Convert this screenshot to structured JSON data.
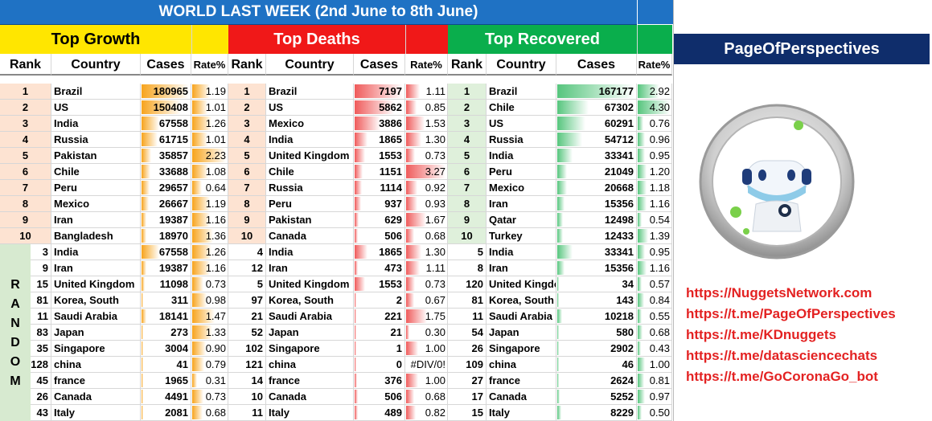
{
  "title": "WORLD LAST WEEK (2nd June to 8th June)",
  "colors": {
    "title_bg": "#1f72c4",
    "growth": "#ffe600",
    "deaths": "#f01818",
    "recovered": "#0aae4c",
    "brand": "#0f2d6b",
    "links": "#e32222"
  },
  "sections": [
    {
      "label": "Top Growth",
      "key": "growth"
    },
    {
      "label": "Top Deaths",
      "key": "deaths"
    },
    {
      "label": "Top Recovered",
      "key": "recovered"
    }
  ],
  "col_headers": {
    "rank": "Rank",
    "country": "Country",
    "cases": "Cases",
    "rate": "Rate%"
  },
  "random_label": [
    "R",
    "A",
    "N",
    "D",
    "O",
    "M"
  ],
  "growth": [
    [
      "1",
      "Brazil",
      "180965",
      "1.19"
    ],
    [
      "2",
      "US",
      "150408",
      "1.01"
    ],
    [
      "3",
      "India",
      "67558",
      "1.26"
    ],
    [
      "4",
      "Russia",
      "61715",
      "1.01"
    ],
    [
      "5",
      "Pakistan",
      "35857",
      "2.23"
    ],
    [
      "6",
      "Chile",
      "33688",
      "1.08"
    ],
    [
      "7",
      "Peru",
      "29657",
      "0.64"
    ],
    [
      "8",
      "Mexico",
      "26667",
      "1.19"
    ],
    [
      "9",
      "Iran",
      "19387",
      "1.16"
    ],
    [
      "10",
      "Bangladesh",
      "18970",
      "1.36"
    ],
    [
      "3",
      "India",
      "67558",
      "1.26"
    ],
    [
      "9",
      "Iran",
      "19387",
      "1.16"
    ],
    [
      "15",
      "United Kingdom",
      "11098",
      "0.73"
    ],
    [
      "81",
      "Korea, South",
      "311",
      "0.98"
    ],
    [
      "11",
      "Saudi Arabia",
      "18141",
      "1.47"
    ],
    [
      "83",
      "Japan",
      "273",
      "1.33"
    ],
    [
      "35",
      "Singapore",
      "3004",
      "0.90"
    ],
    [
      "128",
      "china",
      "41",
      "0.79"
    ],
    [
      "45",
      "france",
      "1965",
      "0.31"
    ],
    [
      "26",
      "Canada",
      "4491",
      "0.73"
    ],
    [
      "43",
      "Italy",
      "2081",
      "0.68"
    ]
  ],
  "deaths": [
    [
      "1",
      "Brazil",
      "7197",
      "1.11"
    ],
    [
      "2",
      "US",
      "5862",
      "0.85"
    ],
    [
      "3",
      "Mexico",
      "3886",
      "1.53"
    ],
    [
      "4",
      "India",
      "1865",
      "1.30"
    ],
    [
      "5",
      "United Kingdom",
      "1553",
      "0.73"
    ],
    [
      "6",
      "Chile",
      "1151",
      "3.27"
    ],
    [
      "7",
      "Russia",
      "1114",
      "0.92"
    ],
    [
      "8",
      "Peru",
      "937",
      "0.93"
    ],
    [
      "9",
      "Pakistan",
      "629",
      "1.67"
    ],
    [
      "10",
      "Canada",
      "506",
      "0.68"
    ],
    [
      "4",
      "India",
      "1865",
      "1.30"
    ],
    [
      "12",
      "Iran",
      "473",
      "1.11"
    ],
    [
      "5",
      "United Kingdom",
      "1553",
      "0.73"
    ],
    [
      "97",
      "Korea, South",
      "2",
      "0.67"
    ],
    [
      "21",
      "Saudi Arabia",
      "221",
      "1.75"
    ],
    [
      "52",
      "Japan",
      "21",
      "0.30"
    ],
    [
      "102",
      "Singapore",
      "1",
      "1.00"
    ],
    [
      "121",
      "china",
      "0",
      "#DIV/0!"
    ],
    [
      "14",
      "france",
      "376",
      "1.00"
    ],
    [
      "10",
      "Canada",
      "506",
      "0.68"
    ],
    [
      "11",
      "Italy",
      "489",
      "0.82"
    ]
  ],
  "recovered": [
    [
      "1",
      "Brazil",
      "167177",
      "2.92"
    ],
    [
      "2",
      "Chile",
      "67302",
      "4.30"
    ],
    [
      "3",
      "US",
      "60291",
      "0.76"
    ],
    [
      "4",
      "Russia",
      "54712",
      "0.96"
    ],
    [
      "5",
      "India",
      "33341",
      "0.95"
    ],
    [
      "6",
      "Peru",
      "21049",
      "1.20"
    ],
    [
      "7",
      "Mexico",
      "20668",
      "1.18"
    ],
    [
      "8",
      "Iran",
      "15356",
      "1.16"
    ],
    [
      "9",
      "Qatar",
      "12498",
      "0.54"
    ],
    [
      "10",
      "Turkey",
      "12433",
      "1.39"
    ],
    [
      "5",
      "India",
      "33341",
      "0.95"
    ],
    [
      "8",
      "Iran",
      "15356",
      "1.16"
    ],
    [
      "120",
      "United Kingdom",
      "34",
      "0.57"
    ],
    [
      "81",
      "Korea, South",
      "143",
      "0.84"
    ],
    [
      "11",
      "Saudi Arabia",
      "10218",
      "0.55"
    ],
    [
      "54",
      "Japan",
      "580",
      "0.68"
    ],
    [
      "26",
      "Singapore",
      "2902",
      "0.43"
    ],
    [
      "109",
      "china",
      "46",
      "1.00"
    ],
    [
      "27",
      "france",
      "2624",
      "0.81"
    ],
    [
      "17",
      "Canada",
      "5252",
      "0.97"
    ],
    [
      "15",
      "Italy",
      "8229",
      "0.50"
    ]
  ],
  "brand": "PageOfPerspectives",
  "links": [
    "https://NuggetsNetwork.com",
    "https://t.me/PageOfPerspectives",
    "https://t.me/KDnuggets",
    "https://t.me/datasciencechats",
    "https://t.me/GoCoronaGo_bot"
  ],
  "logo_icons": [
    "robot-mascot-icon",
    "virus-icon"
  ]
}
